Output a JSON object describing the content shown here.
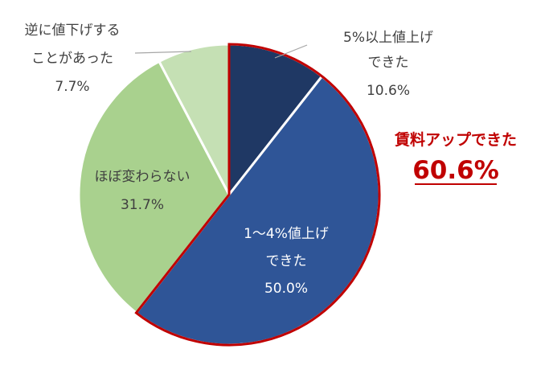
{
  "chart_data": {
    "type": "pie",
    "slices": [
      {
        "label_lines": [
          "5%以上値上げ",
          "できた"
        ],
        "value": 10.6,
        "value_label": "10.6%",
        "color": "#1f3864"
      },
      {
        "label_lines": [
          "1～4%値上げ",
          "できた"
        ],
        "value": 50.0,
        "value_label": "50.0%",
        "color": "#2f5597"
      },
      {
        "label_lines": [
          "ほぼ変わらない"
        ],
        "value": 31.7,
        "value_label": "31.7%",
        "color": "#a9d18e"
      },
      {
        "label_lines": [
          "逆に値下げする",
          "ことがあった"
        ],
        "value": 7.7,
        "value_label": "7.7%",
        "color": "#c5e0b4"
      }
    ],
    "callout": {
      "title": "賃料アップできた",
      "value": "60.6%",
      "color": "#c00000"
    },
    "highlight_outline_color": "#c00000"
  }
}
